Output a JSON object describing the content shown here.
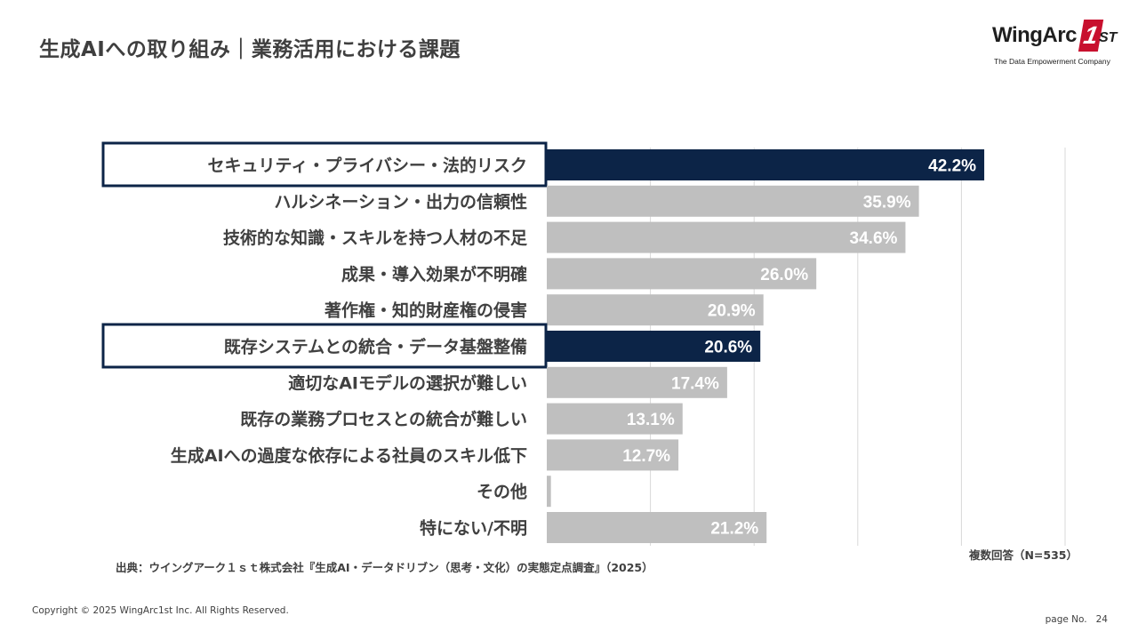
{
  "title": "生成AIへの取り組み｜業務活用における課題",
  "logo": {
    "word": "WingArc",
    "badge": "1",
    "suffix": "ST",
    "tagline": "The Data Empowerment Company"
  },
  "chart_data": {
    "type": "bar",
    "orientation": "horizontal",
    "categories": [
      "セキュリティ・プライバシー・法的リスク",
      "ハルシネーション・出力の信頼性",
      "技術的な知識・スキルを持つ人材の不足",
      "成果・導入効果が不明確",
      "著作権・知的財産権の侵害",
      "既存システムとの統合・データ基盤整備",
      "適切なAIモデルの選択が難しい",
      "既存の業務プロセスとの統合が難しい",
      "生成AIへの過度な依存による社員のスキル低下",
      "その他",
      "特にない/不明"
    ],
    "values": [
      42.2,
      35.9,
      34.6,
      26.0,
      20.9,
      20.6,
      17.4,
      13.1,
      12.7,
      0.4,
      21.2
    ],
    "labels": [
      "42.2%",
      "35.9%",
      "34.6%",
      "26.0%",
      "20.9%",
      "20.6%",
      "17.4%",
      "13.1%",
      "12.7%",
      "",
      "21.2%"
    ],
    "highlighted": [
      0,
      5
    ],
    "xlim": [
      0,
      50
    ],
    "grid": true,
    "colors": {
      "highlight": "#0c2447",
      "default": "#bfbfbf",
      "grid": "#d9d9d9",
      "label": "#404040",
      "value": "#ffffff"
    }
  },
  "note": "複数回答（N=535）",
  "source": "出典：ウイングアーク１ｓｔ株式会社『生成AI・データドリブン（思考・文化）の実態定点調査』（2025）",
  "copyright": "Copyright © 2025 WingArc1st Inc.  All Rights Reserved.",
  "page": {
    "label": "page No.",
    "number": "24"
  }
}
